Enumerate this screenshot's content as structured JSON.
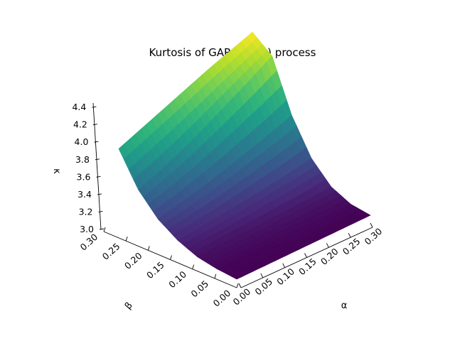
{
  "chart_data": {
    "type": "surface",
    "title": "Kurtosis of GARCH(1,1) process",
    "xlabel": "α",
    "ylabel": "β",
    "zlabel": "κ",
    "xlim": [
      0.0,
      0.3
    ],
    "ylim": [
      0.0,
      0.3
    ],
    "zlim": [
      3.0,
      4.45
    ],
    "xticks": [
      "0.00",
      "0.05",
      "0.10",
      "0.15",
      "0.20",
      "0.25",
      "0.30"
    ],
    "yticks": [
      "0.00",
      "0.05",
      "0.10",
      "0.15",
      "0.20",
      "0.25",
      "0.30"
    ],
    "zticks": [
      "3.0",
      "3.2",
      "3.4",
      "3.6",
      "3.8",
      "4.0",
      "4.2",
      "4.4"
    ],
    "x": [
      0.0,
      0.05,
      0.1,
      0.15,
      0.2,
      0.25,
      0.3
    ],
    "y": [
      0.0,
      0.05,
      0.1,
      0.15,
      0.2,
      0.25,
      0.3
    ],
    "z": [
      [
        3.0,
        3.0,
        3.0,
        3.0,
        3.0,
        3.0,
        3.0
      ],
      [
        3.02,
        3.02,
        3.02,
        3.03,
        3.03,
        3.03,
        3.03
      ],
      [
        3.06,
        3.07,
        3.08,
        3.09,
        3.1,
        3.11,
        3.13
      ],
      [
        3.15,
        3.17,
        3.2,
        3.23,
        3.27,
        3.3,
        3.35
      ],
      [
        3.29,
        3.35,
        3.41,
        3.48,
        3.56,
        3.64,
        3.73
      ],
      [
        3.52,
        3.62,
        3.73,
        3.86,
        4.0,
        4.14,
        4.29
      ],
      [
        3.88,
        3.98,
        4.08,
        4.18,
        4.28,
        4.37,
        4.46
      ]
    ],
    "colormap": "viridis",
    "grid": true,
    "legend": "none"
  }
}
